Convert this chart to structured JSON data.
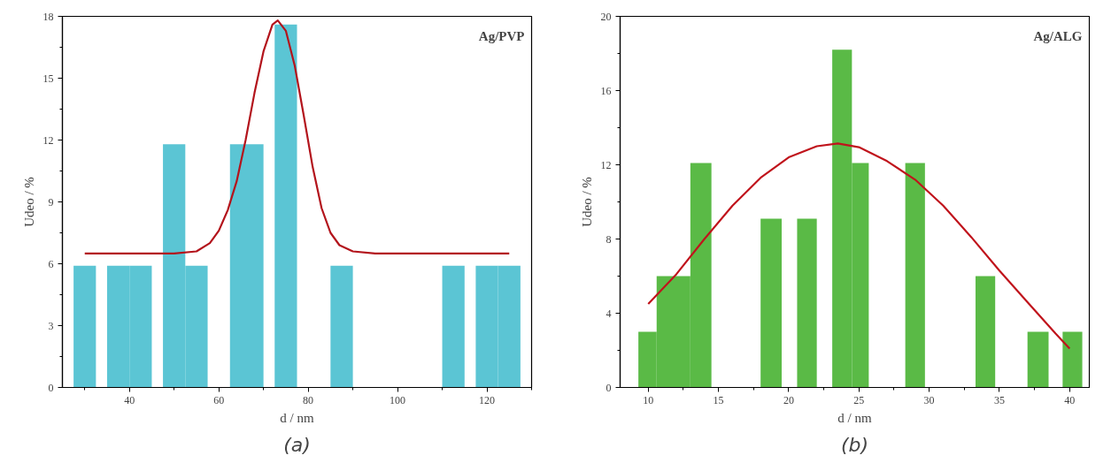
{
  "chart_data": [
    {
      "type": "histogram",
      "title": "Ag/PVP",
      "xlabel": "d / nm",
      "ylabel": "Udeo / %",
      "annotations": [
        "(a)"
      ],
      "color": "#5bc5d4",
      "bins": [
        27.5,
        32.5,
        35,
        40,
        45,
        47.5,
        52.5,
        57.5,
        62.5,
        70,
        72.5,
        77.5,
        85,
        90,
        110,
        115,
        117.5,
        122.5,
        127.5
      ],
      "values": [
        5.9,
        0,
        5.9,
        5.9,
        0,
        11.8,
        5.9,
        0,
        11.8,
        0,
        17.6,
        0,
        5.9,
        0,
        5.9,
        0,
        5.9,
        5.9
      ],
      "series": [
        {
          "type": "line",
          "color": "#b3141c",
          "x": [
            30,
            50,
            55,
            58,
            60,
            62,
            64,
            66,
            68,
            70,
            72,
            73.2,
            75,
            77,
            79,
            81,
            83,
            85,
            87,
            90,
            95,
            125
          ],
          "values": [
            6.5,
            6.5,
            6.6,
            7.0,
            7.6,
            8.6,
            10.0,
            12.0,
            14.3,
            16.3,
            17.6,
            17.8,
            17.3,
            15.6,
            13.2,
            10.7,
            8.7,
            7.5,
            6.9,
            6.6,
            6.5,
            6.5
          ]
        }
      ],
      "xlim": [
        25,
        130
      ],
      "ylim": [
        0,
        18
      ],
      "xticks": [
        {
          "value": 30,
          "label": null
        },
        40,
        {
          "value": 50,
          "label": null
        },
        60,
        {
          "value": 70,
          "label": null
        },
        80,
        {
          "value": 90,
          "label": null
        },
        100,
        {
          "value": 110,
          "label": null
        },
        120,
        {
          "value": 130,
          "label": null
        }
      ],
      "yticks": [
        0,
        {
          "value": 1.5,
          "label": null
        },
        3,
        {
          "value": 4.5,
          "label": null
        },
        6,
        {
          "value": 7.5,
          "label": null
        },
        9,
        {
          "value": 10.5,
          "label": null
        },
        12,
        {
          "value": 13.5,
          "label": null
        },
        15,
        {
          "value": 16.5,
          "label": null
        },
        18
      ]
    },
    {
      "type": "histogram",
      "title": "Ag/ALG",
      "xlabel": "d / nm",
      "ylabel": "Udeo / %",
      "annotations": [
        "(b)"
      ],
      "color": "#5aba46",
      "bins": [
        9.3,
        10.6,
        13.0,
        14.5,
        18.0,
        19.5,
        20.6,
        22.0,
        23.1,
        24.5,
        25.7,
        28.3,
        29.7,
        33.3,
        34.7,
        37.0,
        38.5,
        39.5,
        40.9
      ],
      "values": [
        3,
        6,
        12.1,
        0,
        9.1,
        0,
        9.1,
        0,
        18.2,
        12.1,
        0,
        12.1,
        0,
        6,
        0,
        3,
        0,
        3
      ],
      "series": [
        {
          "type": "line",
          "color": "#c0141c",
          "x": [
            10,
            12,
            14,
            16,
            18,
            20,
            22,
            23.5,
            25,
            27,
            29,
            31,
            33,
            35,
            37,
            39,
            40
          ],
          "values": [
            4.5,
            6.1,
            8.0,
            9.8,
            11.3,
            12.4,
            13.0,
            13.15,
            12.95,
            12.2,
            11.2,
            9.8,
            8.1,
            6.3,
            4.6,
            2.9,
            2.1
          ]
        }
      ],
      "xlim": [
        8,
        41.4
      ],
      "ylim": [
        0,
        20
      ],
      "xticks": [
        10,
        {
          "value": 12.5,
          "label": null
        },
        15,
        {
          "value": 17.5,
          "label": null
        },
        20,
        {
          "value": 22.5,
          "label": null
        },
        25,
        {
          "value": 27.5,
          "label": null
        },
        30,
        {
          "value": 32.5,
          "label": null
        },
        35,
        {
          "value": 37.5,
          "label": null
        },
        40
      ],
      "yticks": [
        0,
        {
          "value": 2,
          "label": null
        },
        4,
        {
          "value": 6,
          "label": null
        },
        8,
        {
          "value": 10,
          "label": null
        },
        12,
        {
          "value": 14,
          "label": null
        },
        16,
        {
          "value": 18,
          "label": null
        },
        20
      ]
    }
  ]
}
